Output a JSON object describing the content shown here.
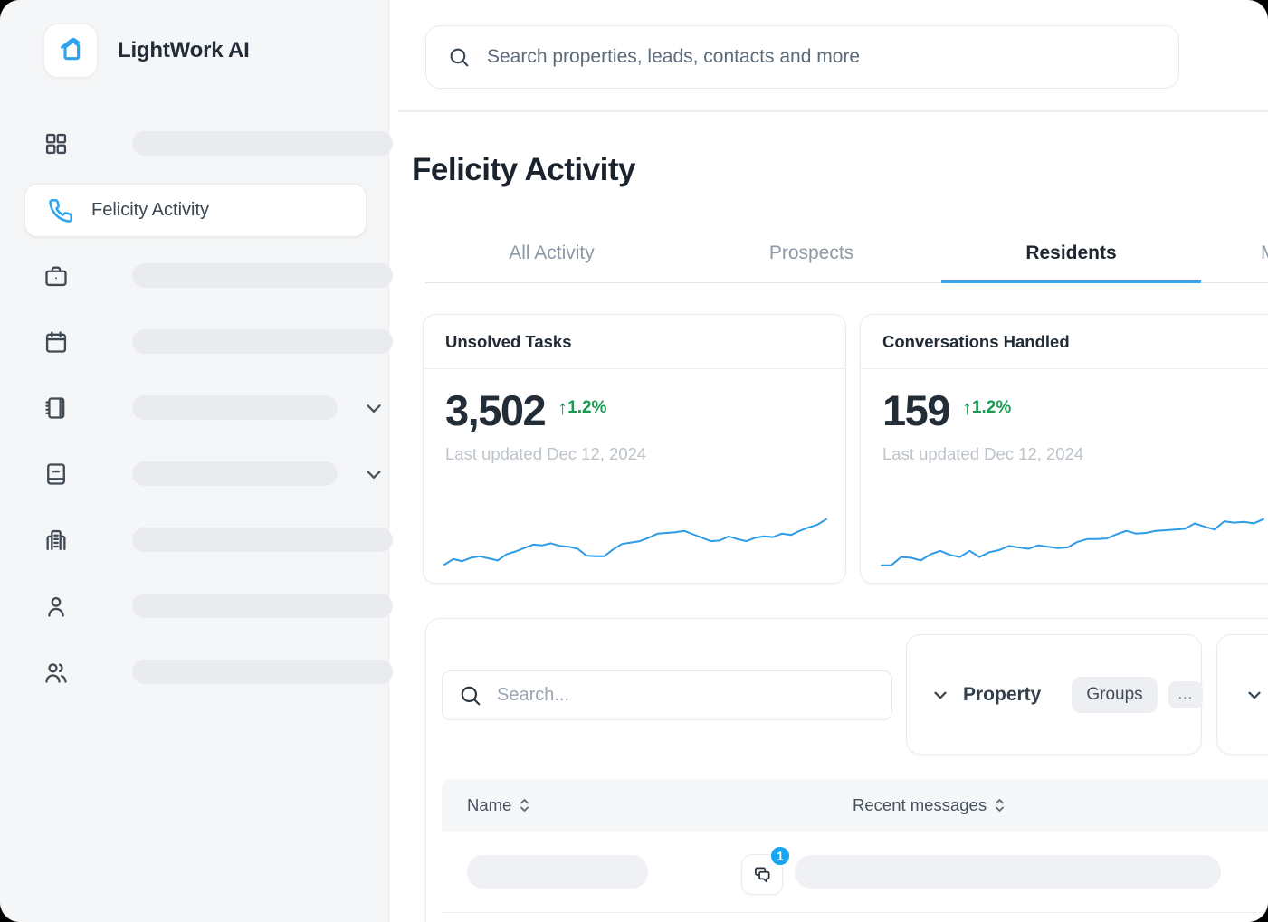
{
  "app": {
    "name": "LightWork AI"
  },
  "colors": {
    "brand_blue": "#2FA3EE",
    "accent_underline": "#3BA3EC",
    "sparkline": "#2E9BE8",
    "badge_blue": "#17A5F3",
    "positive_green": "#189A50"
  },
  "sidebar": {
    "title": "LightWork AI",
    "items": [
      {
        "icon": "grid-icon",
        "skeleton": true
      },
      {
        "icon": "phone-icon",
        "label": "Felicity Activity",
        "active": true
      },
      {
        "icon": "briefcase-icon",
        "skeleton": true
      },
      {
        "icon": "calendar-icon",
        "skeleton": true
      },
      {
        "icon": "notebook-icon",
        "skeleton": true,
        "chevron": true
      },
      {
        "icon": "book-icon",
        "skeleton": true,
        "chevron": true
      },
      {
        "icon": "building-icon",
        "skeleton": true
      },
      {
        "icon": "user-icon",
        "skeleton": true
      },
      {
        "icon": "users-icon",
        "skeleton": true
      }
    ]
  },
  "header": {
    "search_placeholder": "Search properties, leads, contacts and more"
  },
  "page": {
    "title": "Felicity Activity"
  },
  "tabs": [
    {
      "label": "All Activity",
      "active": false
    },
    {
      "label": "Prospects",
      "active": false
    },
    {
      "label": "Residents",
      "active": true
    },
    {
      "label": "M",
      "active": false,
      "partial": true
    }
  ],
  "stat_cards": [
    {
      "title": "Unsolved Tasks",
      "value": "3,502",
      "delta_arrow": "↑",
      "delta": "1.2%",
      "updated": "Last updated Dec 12, 2024"
    },
    {
      "title": "Conversations Handled",
      "value": "159",
      "delta_arrow": "↑",
      "delta": "1.2%",
      "updated": "Last updated Dec 12, 2024"
    }
  ],
  "chart_data": [
    {
      "type": "line",
      "title": "Unsolved Tasks trend sparkline",
      "ylim": [
        0,
        100
      ],
      "values": [
        4,
        12,
        9,
        14,
        16,
        13,
        10,
        19,
        23,
        28,
        33,
        32,
        35,
        31,
        30,
        27,
        17,
        16,
        16,
        26,
        34,
        36,
        38,
        43,
        49,
        50,
        51,
        53,
        48,
        43,
        38,
        39,
        45,
        41,
        38,
        43,
        45,
        44,
        49,
        47,
        53,
        58,
        62,
        70
      ]
    },
    {
      "type": "line",
      "title": "Conversations Handled trend sparkline",
      "ylim": [
        0,
        100
      ],
      "values": [
        3,
        3,
        15,
        14,
        10,
        19,
        24,
        18,
        15,
        24,
        15,
        22,
        25,
        31,
        29,
        27,
        32,
        30,
        28,
        29,
        37,
        41,
        41,
        42,
        48,
        53,
        49,
        50,
        53,
        54,
        55,
        56,
        64,
        59,
        55,
        67,
        65,
        66,
        64,
        70
      ]
    }
  ],
  "filters": {
    "search_placeholder": "Search...",
    "property_label": "Property",
    "groups_label": "Groups",
    "more_label": "..."
  },
  "table": {
    "columns": [
      {
        "label": "Name",
        "sortable": true
      },
      {
        "label": "Recent messages",
        "sortable": true
      }
    ],
    "rows": [
      {
        "name_skeleton": true,
        "message_skeleton": true,
        "unread_badge": "1"
      }
    ]
  }
}
